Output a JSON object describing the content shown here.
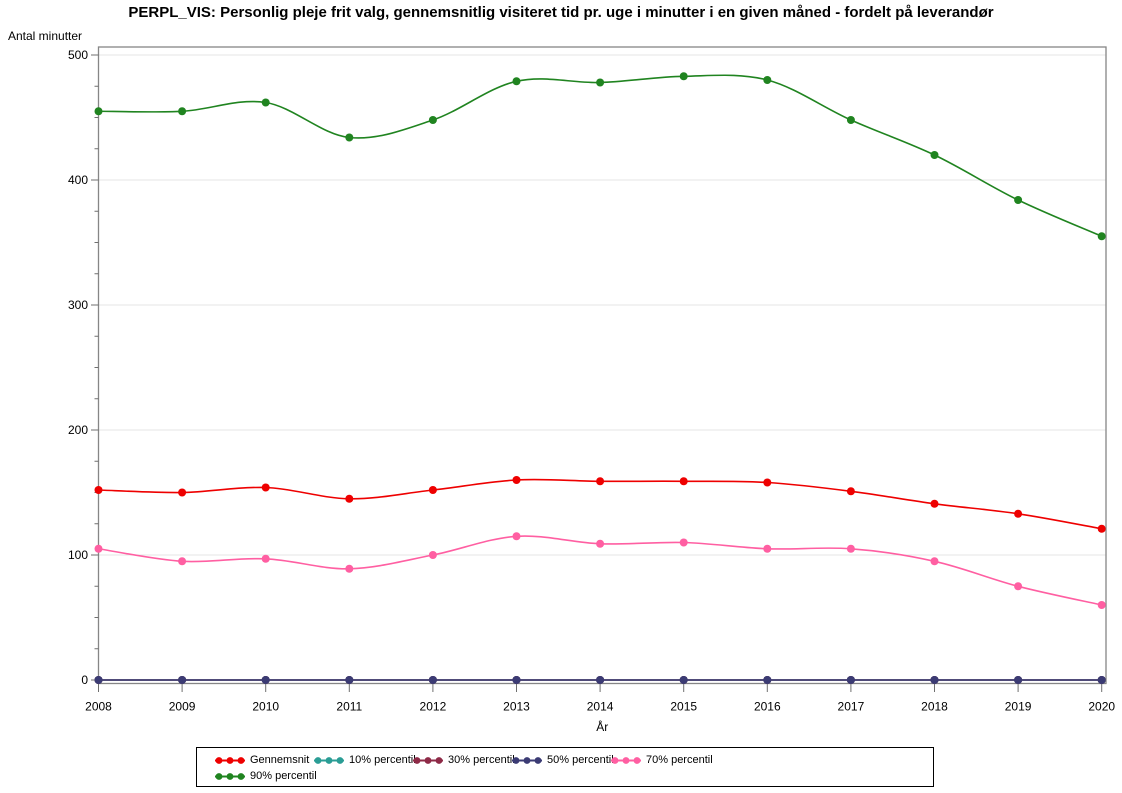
{
  "chart_data": {
    "type": "line",
    "title": "PERPL_VIS: Personlig pleje frit valg, gennemsnitlig visiteret tid pr. uge i minutter i en given måned - fordelt på leverandør",
    "ylabel": "Antal minutter",
    "xlabel": "År",
    "x": [
      2008,
      2009,
      2010,
      2011,
      2012,
      2013,
      2014,
      2015,
      2016,
      2017,
      2018,
      2019,
      2020
    ],
    "ylim": [
      0,
      500
    ],
    "ytick_interval": 100,
    "ytick_minor_interval": 25,
    "grid": "horizontal",
    "legend_position": "bottom",
    "frame_color": "#868686",
    "grid_color": "#e4e4e4",
    "tick_color": "#6f6f6f",
    "series": [
      {
        "name": "Gennemsnit",
        "color": "#ee0000",
        "values": [
          152,
          150,
          154,
          145,
          152,
          160,
          159,
          159,
          158,
          151,
          141,
          133,
          121
        ]
      },
      {
        "name": "10% percentil",
        "color": "#2a9d95",
        "values": [
          0,
          0,
          0,
          0,
          0,
          0,
          0,
          0,
          0,
          0,
          0,
          0,
          0
        ]
      },
      {
        "name": "30% percentil",
        "color": "#8e2a47",
        "values": [
          0,
          0,
          0,
          0,
          0,
          0,
          0,
          0,
          0,
          0,
          0,
          0,
          0
        ]
      },
      {
        "name": "50% percentil",
        "color": "#3b3b74",
        "values": [
          0,
          0,
          0,
          0,
          0,
          0,
          0,
          0,
          0,
          0,
          0,
          0,
          0
        ]
      },
      {
        "name": "70% percentil",
        "color": "#ff5fa2",
        "values": [
          105,
          95,
          97,
          89,
          100,
          115,
          109,
          110,
          105,
          105,
          95,
          75,
          60
        ]
      },
      {
        "name": "90% percentil",
        "color": "#208420",
        "values": [
          455,
          455,
          462,
          434,
          448,
          479,
          478,
          483,
          480,
          448,
          420,
          384,
          355
        ]
      }
    ],
    "legend_rows": [
      [
        "Gennemsnit",
        "10% percentil",
        "30% percentil",
        "50% percentil",
        "70% percentil"
      ],
      [
        "90% percentil"
      ]
    ]
  }
}
